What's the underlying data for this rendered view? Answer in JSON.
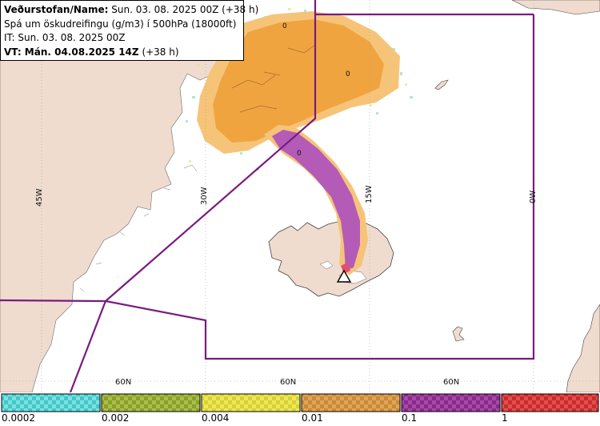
{
  "info": {
    "source_prefix": "Veðurstofan/Name:",
    "source_value": "Sun. 03. 08. 2025 00Z (+38 h)",
    "description": "Spá um öskudreifingu (g/m3) í 500hPa (18000ft)",
    "issue_time": "IT: Sun. 03. 08. 2025 00Z",
    "valid_prefix": "VT: Mán. 04.08.2025 14Z",
    "valid_suffix": "(+38 h)"
  },
  "graticule": {
    "lon_labels": [
      "45W",
      "30W",
      "15W",
      "0W"
    ],
    "lat_labels": [
      "60N",
      "60N",
      "60N"
    ]
  },
  "contour_labels": [
    "0",
    "0",
    "0"
  ],
  "legend": {
    "labels": [
      "0.0002",
      "0.002",
      "0.004",
      "0.01",
      "0.1",
      "1"
    ],
    "colors": [
      "#3ec9c9",
      "#8aa02a",
      "#d9d22e",
      "#c98a35",
      "#8a2a8a",
      "#cc2a2a"
    ]
  },
  "colors": {
    "land": "#efdccf",
    "sea": "#ffffff",
    "fir_boundary": "#7a1a80",
    "ash_low": "#f6c478",
    "ash_mid": "#f0a440",
    "ash_high": "#b45bb8"
  },
  "icons": [
    "volcano-icon"
  ]
}
